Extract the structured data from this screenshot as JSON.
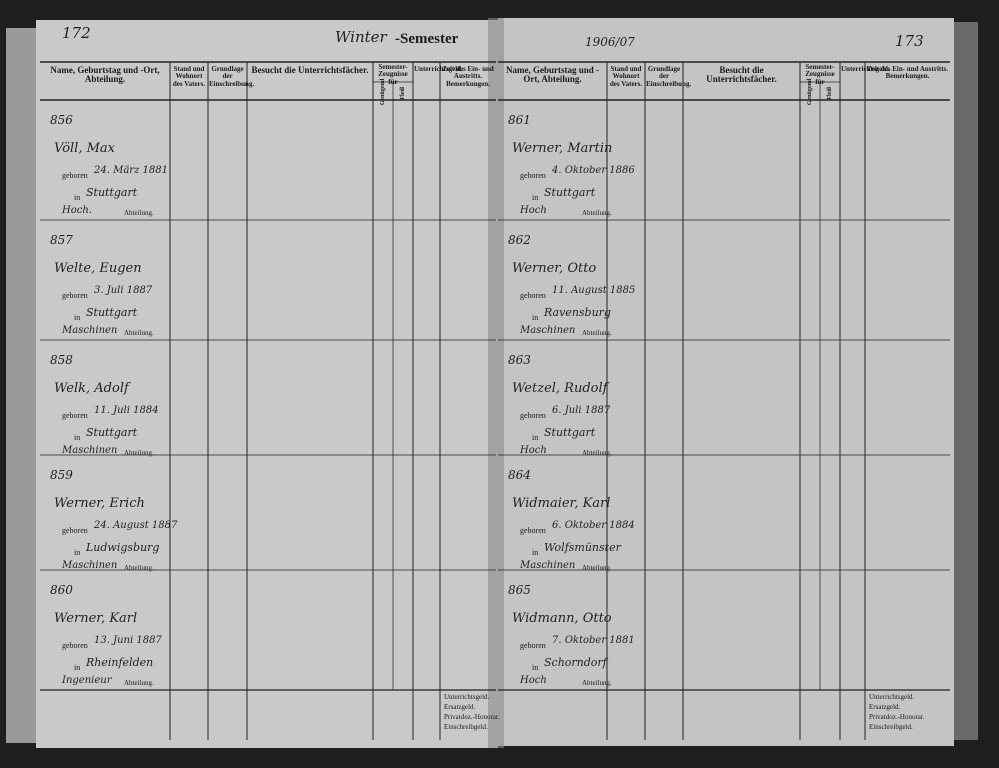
{
  "header": {
    "left_page_number": "172",
    "semester_prefix": "Winter",
    "semester_title": "-Semester",
    "year": "1906/07",
    "right_page_number": "173"
  },
  "columns": {
    "name": "Name, Geburtstag und -Ort, Abteilung.",
    "father": "Stand und Wohnort des Vaters.",
    "enrollment": "Grundlage der Einschreibung.",
    "subjects": "Besucht die Unterrichtsfächer.",
    "certificates": "Semester-Zeugnisse für",
    "sufficient": "Genügend",
    "diligence": "Fleiß",
    "fee": "Unterrichtsgeld.",
    "remarks": "Zeit des Ein- und Austritts. Bemerkungen."
  },
  "form_labels": {
    "born": "geboren",
    "in": "in",
    "department": "Abteilung."
  },
  "left_entries": [
    {
      "number": "856",
      "name": "Völl, Max",
      "birth_date": "24. März 1881",
      "birth_place": "Stuttgart",
      "department": "Hoch."
    },
    {
      "number": "857",
      "name": "Welte, Eugen",
      "birth_date": "3. Juli 1887",
      "birth_place": "Stuttgart",
      "department": "Maschinen"
    },
    {
      "number": "858",
      "name": "Welk, Adolf",
      "birth_date": "11. Juli 1884",
      "birth_place": "Stuttgart",
      "department": "Maschinen"
    },
    {
      "number": "859",
      "name": "Werner, Erich",
      "birth_date": "24. August 1887",
      "birth_place": "Ludwigsburg",
      "department": "Maschinen"
    },
    {
      "number": "860",
      "name": "Werner, Karl",
      "birth_date": "13. Juni 1887",
      "birth_place": "Rheinfelden",
      "department": "Ingenieur"
    }
  ],
  "right_entries": [
    {
      "number": "861",
      "name": "Werner, Martin",
      "birth_date": "4. Oktober 1886",
      "birth_place": "Stuttgart",
      "department": "Hoch"
    },
    {
      "number": "862",
      "name": "Werner, Otto",
      "birth_date": "11. August 1885",
      "birth_place": "Ravensburg",
      "department": "Maschinen"
    },
    {
      "number": "863",
      "name": "Wetzel, Rudolf",
      "birth_date": "6. Juli 1887",
      "birth_place": "Stuttgart",
      "department": "Hoch"
    },
    {
      "number": "864",
      "name": "Widmaier, Karl",
      "birth_date": "6. Oktober 1884",
      "birth_place": "Wolfsmünster",
      "department": "Maschinen"
    },
    {
      "number": "865",
      "name": "Widmann, Otto",
      "birth_date": "7. Oktober 1881",
      "birth_place": "Schorndorf",
      "department": "Hoch"
    }
  ],
  "footer": {
    "fee": "Unterrichtsgeld.",
    "replacement": "Ersatzgeld.",
    "lecturer": "Privatdoz.-Honorar.",
    "registration": "Einschreibgeld."
  }
}
